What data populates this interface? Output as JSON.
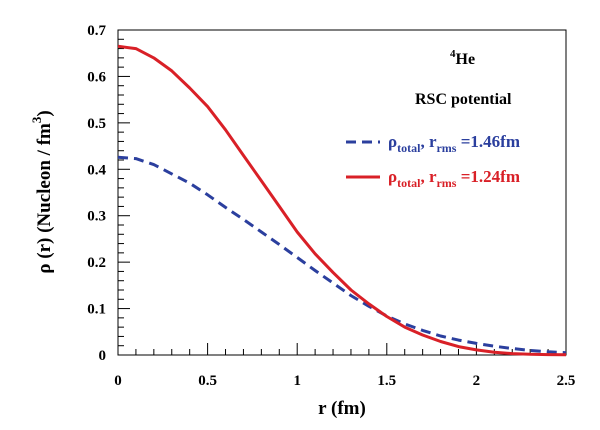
{
  "chart_data": {
    "type": "line",
    "xlabel": "r (fm)",
    "ylabel": {
      "main": "ρ (r) (Nucleon / fm",
      "sup": "3",
      "close": ")"
    },
    "xlim": [
      0,
      2.5
    ],
    "ylim": [
      0,
      0.7
    ],
    "xticks": [
      "0",
      "0.5",
      "1",
      "1.5",
      "2",
      "2.5"
    ],
    "yticks": [
      "0",
      "0.1",
      "0.2",
      "0.3",
      "0.4",
      "0.5",
      "0.6",
      "0.7"
    ],
    "annotations": {
      "nucleus_sup": "4",
      "nucleus": "He",
      "potential": "RSC potential"
    },
    "legend_position": "top-right",
    "series": [
      {
        "legend": {
          "rho": "ρ",
          "rho_sub": "total",
          "sep": ", r",
          "r_sub": "rms",
          "value": " =1.46fm"
        },
        "color": "#2b3f9e",
        "style": "dashed",
        "x": [
          0,
          0.1,
          0.2,
          0.3,
          0.4,
          0.5,
          0.6,
          0.7,
          0.8,
          0.9,
          1.0,
          1.1,
          1.2,
          1.3,
          1.4,
          1.5,
          1.6,
          1.7,
          1.8,
          1.9,
          2.0,
          2.1,
          2.2,
          2.3,
          2.4,
          2.5
        ],
        "y": [
          0.426,
          0.423,
          0.41,
          0.39,
          0.37,
          0.345,
          0.318,
          0.292,
          0.265,
          0.238,
          0.21,
          0.182,
          0.155,
          0.128,
          0.105,
          0.084,
          0.067,
          0.053,
          0.041,
          0.032,
          0.025,
          0.019,
          0.014,
          0.01,
          0.007,
          0.005
        ]
      },
      {
        "legend": {
          "rho": "ρ",
          "rho_sub": "total",
          "sep": ", r",
          "r_sub": "rms",
          "value": " =1.24fm"
        },
        "color": "#d92027",
        "style": "solid",
        "x": [
          0,
          0.1,
          0.2,
          0.3,
          0.4,
          0.5,
          0.6,
          0.7,
          0.8,
          0.9,
          1.0,
          1.1,
          1.2,
          1.3,
          1.4,
          1.5,
          1.6,
          1.7,
          1.8,
          1.9,
          2.0,
          2.1,
          2.2,
          2.3,
          2.4,
          2.5
        ],
        "y": [
          0.665,
          0.66,
          0.64,
          0.612,
          0.575,
          0.535,
          0.485,
          0.43,
          0.375,
          0.32,
          0.265,
          0.218,
          0.178,
          0.14,
          0.11,
          0.083,
          0.06,
          0.043,
          0.029,
          0.018,
          0.011,
          0.006,
          0.003,
          0.0015,
          0.0008,
          0.0004
        ]
      }
    ]
  }
}
